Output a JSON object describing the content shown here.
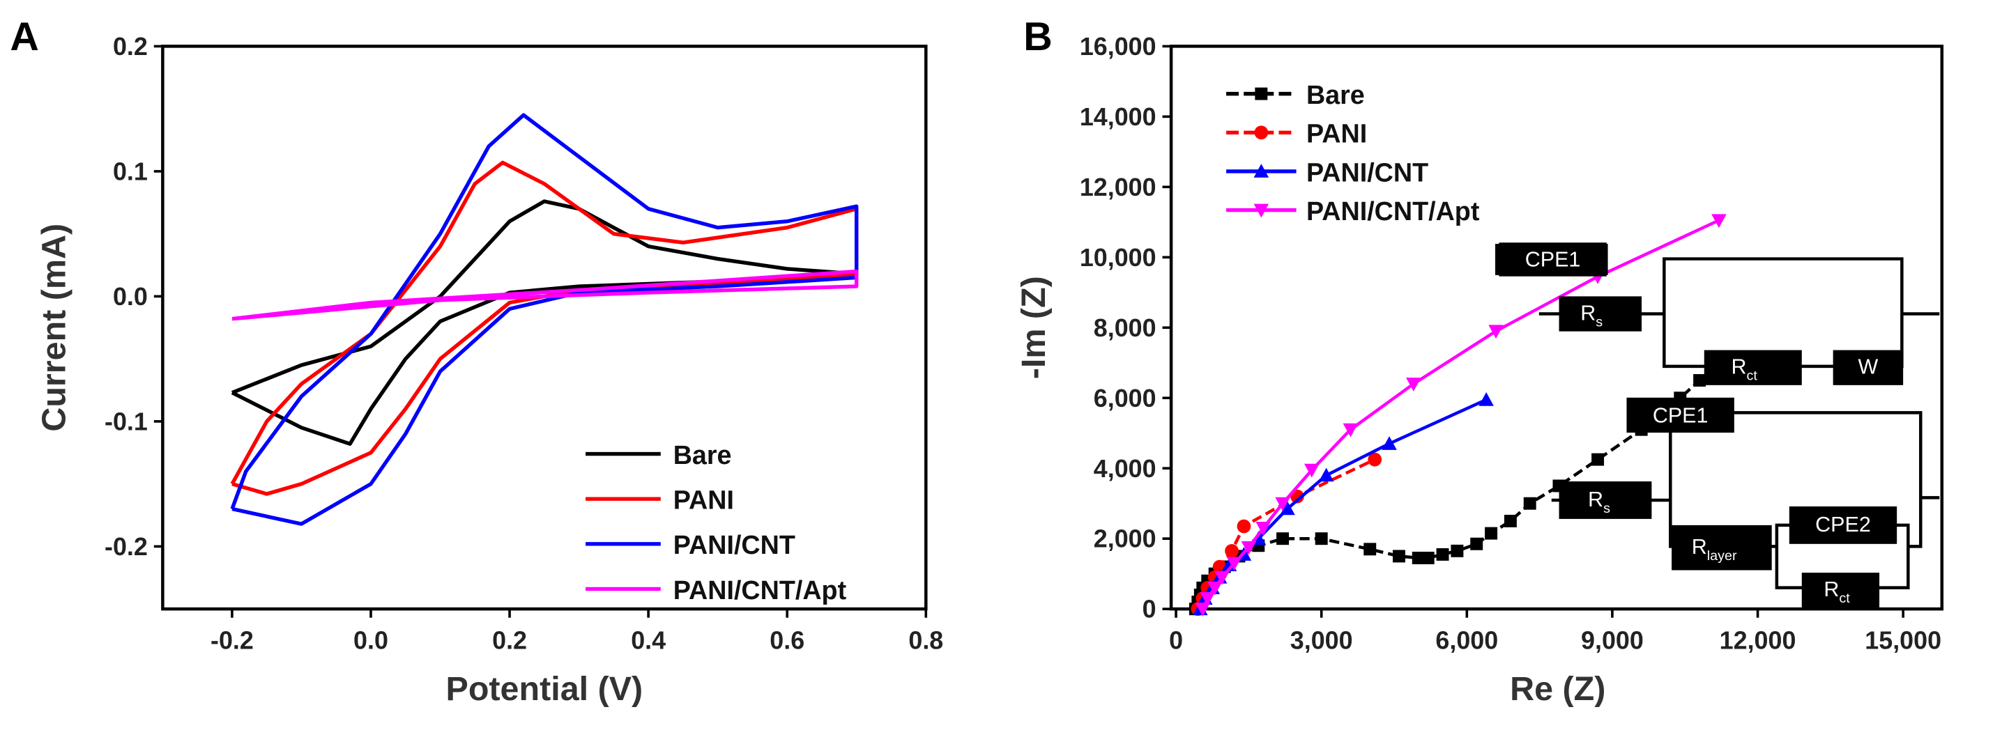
{
  "chart_data": [
    {
      "panel_label": "A",
      "type": "line",
      "xlabel": "Potential (V)",
      "ylabel": "Current (mA)",
      "xlim": [
        -0.3,
        0.8
      ],
      "ylim": [
        -0.25,
        0.2
      ],
      "xticks": [
        -0.2,
        0.0,
        0.2,
        0.4,
        0.6,
        0.8
      ],
      "xtick_labels": [
        "-0.2",
        "0.0",
        "0.2",
        "0.4",
        "0.6",
        "0.8"
      ],
      "yticks": [
        -0.2,
        -0.1,
        0.0,
        0.1,
        0.2
      ],
      "ytick_labels": [
        "-0.2",
        "-0.1",
        "0.0",
        "0.1",
        "0.2"
      ],
      "legend_position": "bottom-right",
      "grid": false,
      "series": [
        {
          "name": "Bare",
          "color": "#000000",
          "x": [
            -0.2,
            -0.1,
            0,
            0.1,
            0.2,
            0.25,
            0.3,
            0.4,
            0.5,
            0.6,
            0.7,
            0.7,
            0.5,
            0.3,
            0.2,
            0.1,
            0.05,
            0,
            -0.03,
            -0.1,
            -0.2
          ],
          "y": [
            -0.077,
            -0.055,
            -0.04,
            0.0,
            0.06,
            0.076,
            0.07,
            0.04,
            0.03,
            0.022,
            0.018,
            0.018,
            0.012,
            0.008,
            0.003,
            -0.02,
            -0.05,
            -0.09,
            -0.118,
            -0.105,
            -0.077
          ]
        },
        {
          "name": "PANI",
          "color": "#ff0000",
          "x": [
            -0.2,
            -0.15,
            -0.1,
            0,
            0.1,
            0.15,
            0.19,
            0.25,
            0.35,
            0.45,
            0.6,
            0.7,
            0.7,
            0.5,
            0.3,
            0.2,
            0.1,
            0.05,
            0,
            -0.1,
            -0.15,
            -0.2
          ],
          "y": [
            -0.15,
            -0.1,
            -0.07,
            -0.03,
            0.04,
            0.09,
            0.107,
            0.09,
            0.05,
            0.043,
            0.055,
            0.07,
            0.018,
            0.01,
            0.005,
            -0.005,
            -0.05,
            -0.09,
            -0.125,
            -0.15,
            -0.158,
            -0.15
          ]
        },
        {
          "name": "PANI/CNT",
          "color": "#0000ff",
          "x": [
            -0.2,
            -0.18,
            -0.1,
            0,
            0.1,
            0.17,
            0.22,
            0.28,
            0.4,
            0.5,
            0.6,
            0.7,
            0.7,
            0.5,
            0.3,
            0.2,
            0.1,
            0.05,
            0,
            -0.1,
            -0.2
          ],
          "y": [
            -0.17,
            -0.14,
            -0.08,
            -0.03,
            0.05,
            0.12,
            0.145,
            0.12,
            0.07,
            0.055,
            0.06,
            0.072,
            0.015,
            0.008,
            0.003,
            -0.01,
            -0.06,
            -0.11,
            -0.15,
            -0.182,
            -0.17
          ]
        },
        {
          "name": "PANI/CNT/Apt",
          "color": "#ff00ff",
          "x": [
            -0.2,
            0,
            0.3,
            0.7,
            0.7,
            0.4,
            0.1,
            -0.2
          ],
          "y": [
            -0.018,
            -0.005,
            0.005,
            0.02,
            0.008,
            0.003,
            -0.003,
            -0.018
          ]
        }
      ]
    },
    {
      "panel_label": "B",
      "type": "scatter",
      "xlabel": "Re (Z)",
      "ylabel": "-Im (Z)",
      "xlim": [
        -100,
        15800
      ],
      "ylim": [
        0,
        16000
      ],
      "xticks": [
        0,
        3000,
        6000,
        9000,
        12000,
        15000
      ],
      "xtick_labels": [
        "0",
        "3,000",
        "6,000",
        "9,000",
        "12,000",
        "15,000"
      ],
      "yticks": [
        0,
        2000,
        4000,
        6000,
        8000,
        10000,
        12000,
        14000,
        16000
      ],
      "ytick_labels": [
        "0",
        "2,000",
        "4,000",
        "6,000",
        "8,000",
        "10,000",
        "12,000",
        "14,000",
        "16,000"
      ],
      "legend_position": "top-left",
      "grid": false,
      "series": [
        {
          "name": "Bare",
          "color": "#000000",
          "marker": "square",
          "dashed": true,
          "x": [
            400,
            450,
            500,
            550,
            650,
            800,
            1000,
            1300,
            1700,
            2200,
            3000,
            4000,
            4600,
            5000,
            5200,
            5500,
            5800,
            6200,
            6500,
            6900,
            7300,
            7900,
            8700,
            9600,
            10400,
            10800
          ],
          "y": [
            0,
            200,
            400,
            600,
            800,
            1000,
            1200,
            1500,
            1800,
            2000,
            2000,
            1700,
            1500,
            1450,
            1450,
            1550,
            1650,
            1850,
            2150,
            2500,
            3000,
            3500,
            4250,
            5100,
            6000,
            6500
          ]
        },
        {
          "name": "PANI",
          "color": "#ff0000",
          "marker": "circle",
          "dashed": true,
          "x": [
            450,
            550,
            650,
            800,
            900,
            1150,
            1400,
            2500,
            4100
          ],
          "y": [
            0,
            300,
            600,
            900,
            1200,
            1650,
            2350,
            3200,
            4250
          ]
        },
        {
          "name": "PANI/CNT",
          "color": "#0000ff",
          "marker": "triangle-up",
          "dashed": false,
          "x": [
            500,
            600,
            750,
            900,
            1100,
            1400,
            1700,
            2300,
            3100,
            4400,
            6400
          ],
          "y": [
            0,
            300,
            600,
            900,
            1250,
            1550,
            2000,
            2850,
            3800,
            4700,
            5950
          ]
        },
        {
          "name": "PANI/CNT/Apt",
          "color": "#ff00ff",
          "marker": "triangle-down",
          "dashed": false,
          "x": [
            550,
            650,
            800,
            950,
            1200,
            1500,
            1800,
            2200,
            2800,
            3600,
            4900,
            6600,
            8700,
            11200
          ],
          "y": [
            0,
            300,
            600,
            900,
            1300,
            1750,
            2300,
            3000,
            3950,
            5100,
            6400,
            7900,
            9450,
            11050
          ]
        }
      ],
      "circuits": {
        "circuit1": {
          "cpe1": "CPE1",
          "rs": "R",
          "rs_sub": "s",
          "rct": "R",
          "rct_sub": "ct",
          "w": "W"
        },
        "circuit2": {
          "cpe1": "CPE1",
          "rs": "R",
          "rs_sub": "s",
          "rlayer": "R",
          "rlayer_sub": "layer",
          "cpe2": "CPE2",
          "rct": "R",
          "rct_sub": "ct"
        }
      }
    }
  ]
}
